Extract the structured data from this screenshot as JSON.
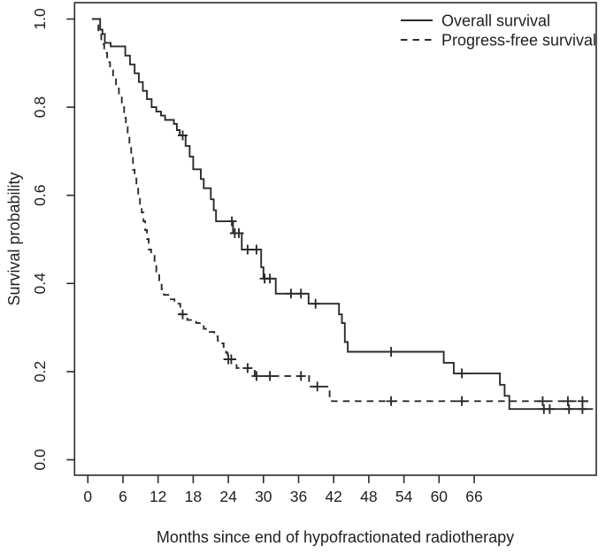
{
  "chart_data": {
    "type": "line",
    "subtype": "kaplan-meier-step-curves",
    "title": "",
    "xlabel": "Months since end of hypofractionated radiotherapy",
    "ylabel": "Survival probability",
    "x_tick_values": [
      0,
      6,
      12,
      18,
      24,
      30,
      36,
      42,
      48,
      54,
      60,
      66
    ],
    "x_tick_labels": [
      "0",
      "6",
      "12",
      "18",
      "24",
      "30",
      "36",
      "42",
      "48",
      "54",
      "60",
      "66"
    ],
    "y_tick_values": [
      0.0,
      0.2,
      0.4,
      0.6,
      0.8,
      1.0
    ],
    "y_tick_labels": [
      "0.0",
      "0.2",
      "0.4",
      "0.6",
      "0.8",
      "1.0"
    ],
    "xlim": [
      0,
      86
    ],
    "ylim": [
      0,
      1
    ],
    "grid": false,
    "legend_position": "top-right",
    "censor_marker": "plus-tick",
    "ink_color": "#2b2b2b",
    "background_color": "#ffffff",
    "series": [
      {
        "name": "Overall survival",
        "line_style": "solid",
        "steps": [
          [
            0.7,
            1.0
          ],
          [
            2.1,
            0.976
          ],
          [
            2.5,
            0.966
          ],
          [
            2.9,
            0.946
          ],
          [
            3.9,
            0.938
          ],
          [
            6.4,
            0.917
          ],
          [
            7.2,
            0.897
          ],
          [
            8.0,
            0.877
          ],
          [
            8.7,
            0.857
          ],
          [
            9.4,
            0.837
          ],
          [
            10.1,
            0.818
          ],
          [
            10.9,
            0.8
          ],
          [
            11.7,
            0.79
          ],
          [
            12.5,
            0.781
          ],
          [
            13.2,
            0.771
          ],
          [
            14.7,
            0.762
          ],
          [
            15.2,
            0.748
          ],
          [
            15.7,
            0.736
          ],
          [
            16.7,
            0.712
          ],
          [
            17.4,
            0.688
          ],
          [
            18.0,
            0.659
          ],
          [
            19.3,
            0.637
          ],
          [
            19.8,
            0.616
          ],
          [
            21.0,
            0.591
          ],
          [
            21.5,
            0.566
          ],
          [
            21.9,
            0.541
          ],
          [
            24.8,
            0.514
          ],
          [
            26.3,
            0.477
          ],
          [
            29.6,
            0.437
          ],
          [
            30.0,
            0.411
          ],
          [
            32.1,
            0.377
          ],
          [
            37.7,
            0.354
          ],
          [
            42.9,
            0.33
          ],
          [
            43.4,
            0.31
          ],
          [
            43.9,
            0.267
          ],
          [
            44.4,
            0.245
          ],
          [
            60.8,
            0.22
          ],
          [
            62.5,
            0.196
          ],
          [
            70.4,
            0.17
          ],
          [
            71.2,
            0.145
          ],
          [
            72.0,
            0.115
          ]
        ],
        "end_time": 86.3,
        "censors": [
          [
            16.2,
            0.736
          ],
          [
            24.6,
            0.541
          ],
          [
            25.1,
            0.514
          ],
          [
            25.8,
            0.514
          ],
          [
            27.3,
            0.477
          ],
          [
            28.8,
            0.477
          ],
          [
            30.2,
            0.411
          ],
          [
            31.1,
            0.411
          ],
          [
            34.7,
            0.377
          ],
          [
            36.4,
            0.377
          ],
          [
            38.9,
            0.354
          ],
          [
            51.8,
            0.245
          ],
          [
            63.9,
            0.196
          ],
          [
            77.9,
            0.115
          ],
          [
            78.9,
            0.115
          ],
          [
            82.2,
            0.115
          ],
          [
            84.5,
            0.115
          ]
        ]
      },
      {
        "name": "Progress-free survival",
        "line_style": "dashed",
        "steps": [
          [
            0.7,
            1.0
          ],
          [
            1.8,
            0.965
          ],
          [
            2.3,
            0.943
          ],
          [
            2.8,
            0.923
          ],
          [
            3.3,
            0.902
          ],
          [
            3.8,
            0.886
          ],
          [
            4.3,
            0.866
          ],
          [
            4.8,
            0.846
          ],
          [
            5.3,
            0.826
          ],
          [
            5.8,
            0.8
          ],
          [
            6.2,
            0.776
          ],
          [
            6.5,
            0.755
          ],
          [
            6.8,
            0.735
          ],
          [
            7.1,
            0.715
          ],
          [
            7.4,
            0.685
          ],
          [
            7.7,
            0.658
          ],
          [
            8.0,
            0.638
          ],
          [
            8.3,
            0.615
          ],
          [
            8.6,
            0.595
          ],
          [
            8.9,
            0.578
          ],
          [
            9.2,
            0.561
          ],
          [
            9.5,
            0.541
          ],
          [
            9.8,
            0.521
          ],
          [
            10.1,
            0.501
          ],
          [
            10.4,
            0.477
          ],
          [
            10.8,
            0.467
          ],
          [
            11.4,
            0.447
          ],
          [
            11.7,
            0.427
          ],
          [
            12.2,
            0.407
          ],
          [
            12.6,
            0.387
          ],
          [
            13.0,
            0.374
          ],
          [
            14.0,
            0.364
          ],
          [
            14.8,
            0.354
          ],
          [
            15.8,
            0.33
          ],
          [
            17.0,
            0.317
          ],
          [
            18.5,
            0.31
          ],
          [
            19.8,
            0.297
          ],
          [
            20.8,
            0.29
          ],
          [
            21.6,
            0.28
          ],
          [
            22.2,
            0.27
          ],
          [
            22.7,
            0.264
          ],
          [
            23.2,
            0.253
          ],
          [
            23.6,
            0.243
          ],
          [
            23.9,
            0.228
          ],
          [
            25.4,
            0.208
          ],
          [
            28.5,
            0.19
          ],
          [
            37.8,
            0.166
          ],
          [
            41.3,
            0.133
          ]
        ],
        "end_time": 86.0,
        "censors": [
          [
            16.2,
            0.33
          ],
          [
            24.0,
            0.228
          ],
          [
            24.5,
            0.228
          ],
          [
            27.3,
            0.208
          ],
          [
            28.8,
            0.19
          ],
          [
            31.1,
            0.19
          ],
          [
            36.4,
            0.19
          ],
          [
            39.2,
            0.166
          ],
          [
            51.8,
            0.133
          ],
          [
            63.9,
            0.133
          ],
          [
            77.7,
            0.133
          ],
          [
            82.0,
            0.133
          ],
          [
            84.5,
            0.133
          ]
        ]
      }
    ]
  }
}
